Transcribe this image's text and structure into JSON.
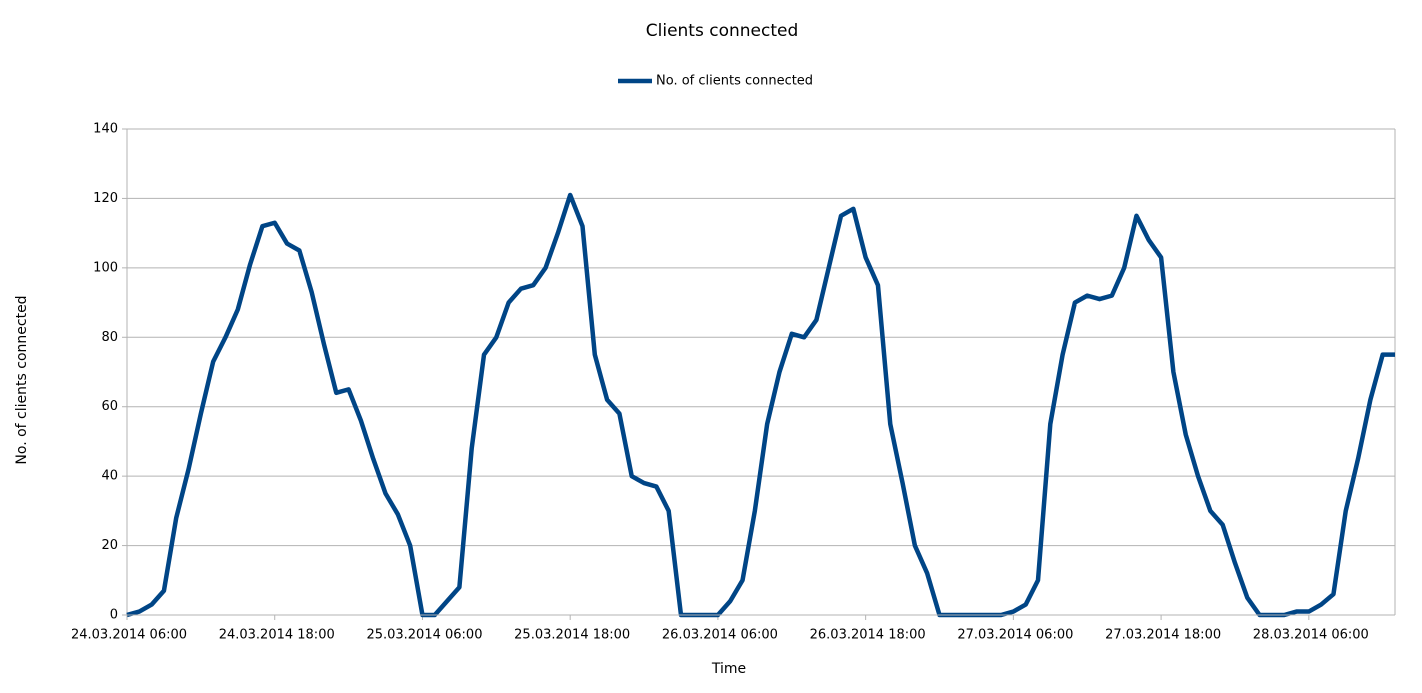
{
  "chart_data": {
    "type": "line",
    "title": "Clients connected",
    "x_label": "Time",
    "y_label": "No. of clients connected",
    "x": [
      "24.03.2014 06:00",
      "24.03.2014 07:00",
      "24.03.2014 08:00",
      "24.03.2014 09:00",
      "24.03.2014 10:00",
      "24.03.2014 11:00",
      "24.03.2014 12:00",
      "24.03.2014 13:00",
      "24.03.2014 14:00",
      "24.03.2014 15:00",
      "24.03.2014 16:00",
      "24.03.2014 17:00",
      "24.03.2014 18:00",
      "24.03.2014 19:00",
      "24.03.2014 20:00",
      "24.03.2014 21:00",
      "24.03.2014 22:00",
      "24.03.2014 23:00",
      "25.03.2014 00:00",
      "25.03.2014 01:00",
      "25.03.2014 02:00",
      "25.03.2014 03:00",
      "25.03.2014 04:00",
      "25.03.2014 05:00",
      "25.03.2014 06:00",
      "25.03.2014 07:00",
      "25.03.2014 08:00",
      "25.03.2014 09:00",
      "25.03.2014 10:00",
      "25.03.2014 11:00",
      "25.03.2014 12:00",
      "25.03.2014 13:00",
      "25.03.2014 14:00",
      "25.03.2014 15:00",
      "25.03.2014 16:00",
      "25.03.2014 17:00",
      "25.03.2014 18:00",
      "25.03.2014 19:00",
      "25.03.2014 20:00",
      "25.03.2014 21:00",
      "25.03.2014 22:00",
      "25.03.2014 23:00",
      "26.03.2014 00:00",
      "26.03.2014 01:00",
      "26.03.2014 02:00",
      "26.03.2014 03:00",
      "26.03.2014 04:00",
      "26.03.2014 05:00",
      "26.03.2014 06:00",
      "26.03.2014 07:00",
      "26.03.2014 08:00",
      "26.03.2014 09:00",
      "26.03.2014 10:00",
      "26.03.2014 11:00",
      "26.03.2014 12:00",
      "26.03.2014 13:00",
      "26.03.2014 14:00",
      "26.03.2014 15:00",
      "26.03.2014 16:00",
      "26.03.2014 17:00",
      "26.03.2014 18:00",
      "26.03.2014 19:00",
      "26.03.2014 20:00",
      "26.03.2014 21:00",
      "26.03.2014 22:00",
      "26.03.2014 23:00",
      "27.03.2014 00:00",
      "27.03.2014 01:00",
      "27.03.2014 02:00",
      "27.03.2014 03:00",
      "27.03.2014 04:00",
      "27.03.2014 05:00",
      "27.03.2014 06:00",
      "27.03.2014 07:00",
      "27.03.2014 08:00",
      "27.03.2014 09:00",
      "27.03.2014 10:00",
      "27.03.2014 11:00",
      "27.03.2014 12:00",
      "27.03.2014 13:00",
      "27.03.2014 14:00",
      "27.03.2014 15:00",
      "27.03.2014 16:00",
      "27.03.2014 17:00",
      "27.03.2014 18:00",
      "27.03.2014 19:00",
      "27.03.2014 20:00",
      "27.03.2014 21:00",
      "27.03.2014 22:00",
      "27.03.2014 23:00",
      "28.03.2014 00:00",
      "28.03.2014 01:00",
      "28.03.2014 02:00",
      "28.03.2014 03:00",
      "28.03.2014 04:00",
      "28.03.2014 05:00",
      "28.03.2014 06:00",
      "28.03.2014 07:00",
      "28.03.2014 08:00",
      "28.03.2014 09:00",
      "28.03.2014 10:00",
      "28.03.2014 11:00",
      "28.03.2014 12:00",
      "28.03.2014 13:00"
    ],
    "series": [
      {
        "name": "No. of clients connected",
        "color": "#004586",
        "values": [
          0,
          1,
          3,
          7,
          28,
          42,
          58,
          73,
          80,
          88,
          101,
          112,
          113,
          107,
          105,
          93,
          78,
          64,
          65,
          56,
          45,
          35,
          29,
          20,
          0,
          0,
          4,
          8,
          48,
          75,
          80,
          90,
          94,
          95,
          100,
          110,
          121,
          112,
          75,
          62,
          58,
          40,
          38,
          37,
          30,
          0,
          0,
          0,
          0,
          4,
          10,
          30,
          55,
          70,
          81,
          80,
          85,
          100,
          115,
          117,
          103,
          95,
          55,
          38,
          20,
          12,
          0,
          0,
          0,
          0,
          0,
          0,
          1,
          3,
          10,
          55,
          75,
          90,
          92,
          91,
          92,
          100,
          115,
          108,
          103,
          70,
          52,
          40,
          30,
          26,
          15,
          5,
          0,
          0,
          0,
          1,
          1,
          3,
          6,
          30,
          45,
          62,
          75,
          75
        ]
      }
    ],
    "xlim": [
      "24.03.2014 06:00",
      "28.03.2014 13:00"
    ],
    "xticks": [
      "24.03.2014 06:00",
      "24.03.2014 18:00",
      "25.03.2014 06:00",
      "25.03.2014 18:00",
      "26.03.2014 06:00",
      "26.03.2014 18:00",
      "27.03.2014 06:00",
      "27.03.2014 18:00",
      "28.03.2014 06:00"
    ],
    "ylim": [
      0,
      140
    ],
    "yticks": [
      0,
      20,
      40,
      60,
      80,
      100,
      120,
      140
    ],
    "grid": true,
    "legend": "top"
  }
}
